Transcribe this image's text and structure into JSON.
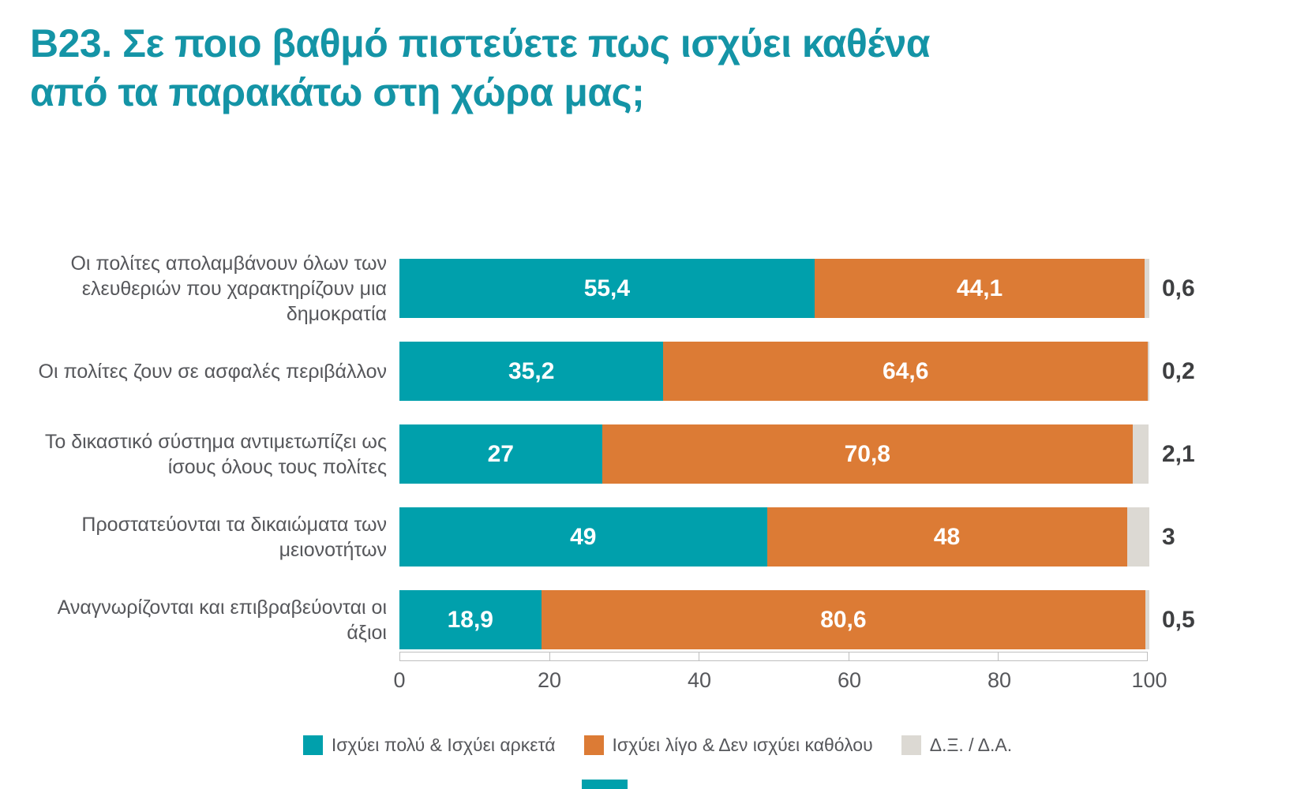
{
  "title": "B23. Σε ποιο βαθμό πιστεύετε πως ισχύει καθένα από τα παρακάτω στη χώρα μας;",
  "colors": {
    "title": "#1494A6",
    "teal": "#00A0AC",
    "orange": "#DC7B35",
    "gray": "#DCD9D3",
    "category_label": "#56575B",
    "value_inside": "#FFFFFF",
    "value_outside": "#3E3F41",
    "axis": "#BFBFBF",
    "tick_label": "#56575B",
    "footer_accent": "#00A0AC"
  },
  "chart_data": {
    "type": "bar",
    "orientation": "horizontal",
    "stacked": true,
    "title": "B23. Σε ποιο βαθμό πιστεύετε πως ισχύει καθένα από τα παρακάτω στη χώρα μας;",
    "xlim": [
      0,
      100
    ],
    "x_ticks": [
      "0",
      "20",
      "40",
      "60",
      "80",
      "100"
    ],
    "grid": false,
    "legend_position": "bottom",
    "categories": [
      "Οι πολίτες απολαμβάνουν όλων των ελευθεριών που χαρακτηρίζουν μια δημοκρατία",
      "Οι πολίτες ζουν σε ασφαλές περιβάλλον",
      "Το δικαστικό σύστημα αντιμετωπίζει ως ίσους όλους τους πολίτες",
      "Προστατεύονται τα δικαιώματα των μειονοτήτων",
      "Αναγνωρίζονται και επιβραβεύονται οι άξιοι"
    ],
    "series": [
      {
        "name": "Ισχύει πολύ & Ισχύει αρκετά",
        "color_key": "teal",
        "label_placement": "inside",
        "values": [
          55.4,
          35.2,
          27,
          49,
          18.9
        ],
        "value_labels": [
          "55,4",
          "35,2",
          "27",
          "49",
          "18,9"
        ]
      },
      {
        "name": "Ισχύει λίγο & Δεν ισχύει καθόλου",
        "color_key": "orange",
        "label_placement": "inside",
        "values": [
          44.1,
          64.6,
          70.8,
          48,
          80.6
        ],
        "value_labels": [
          "44,1",
          "64,6",
          "70,8",
          "48",
          "80,6"
        ]
      },
      {
        "name": "Δ.Ξ. / Δ.Α.",
        "color_key": "gray",
        "label_placement": "outside",
        "values": [
          0.6,
          0.2,
          2.1,
          3,
          0.5
        ],
        "value_labels": [
          "0,6",
          "0,2",
          "2,1",
          "3",
          "0,5"
        ]
      }
    ]
  }
}
